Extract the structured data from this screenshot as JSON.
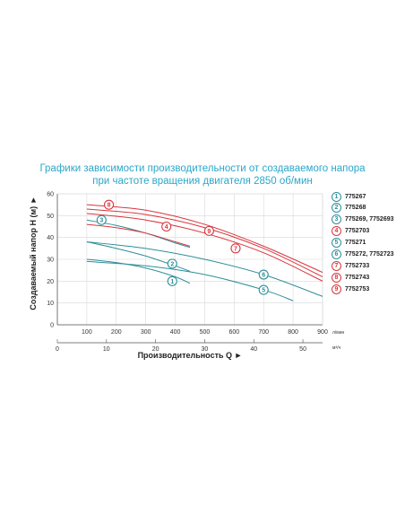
{
  "chart_data": {
    "type": "line",
    "title": "Графики зависимости производительности от создаваемого напора",
    "subtitle": "при частоте вращения двигателя 2850 об/мин",
    "ylabel": "Создаваемый напор H (м) ►",
    "xlabel": "Производительность Q ►",
    "x_unit_primary": "л/мин",
    "x_unit_secondary": "м³/ч",
    "xlim": [
      0,
      900
    ],
    "ylim": [
      0,
      60
    ],
    "x_ticks": [
      100,
      200,
      300,
      400,
      500,
      600,
      700,
      800,
      900
    ],
    "y_ticks": [
      0,
      10,
      20,
      30,
      40,
      50,
      60
    ],
    "x2_ticks": [
      0,
      10,
      20,
      30,
      40,
      50
    ],
    "grid": true,
    "legend_position": "right",
    "colors": {
      "teal": "#2e8f9a",
      "red": "#d9363e",
      "axis": "#555555",
      "grid": "#d8d8d8",
      "title": "#2aa7c9"
    },
    "series": [
      {
        "id": "1",
        "name": "775267",
        "color": "teal",
        "x": [
          100,
          200,
          300,
          400,
          450
        ],
        "y": [
          30,
          28.5,
          26,
          22,
          19
        ]
      },
      {
        "id": "2",
        "name": "775268",
        "color": "teal",
        "x": [
          100,
          200,
          300,
          400,
          450
        ],
        "y": [
          38,
          35,
          31.5,
          27,
          24.5
        ]
      },
      {
        "id": "3",
        "name": "775269, 7752693",
        "color": "teal",
        "x": [
          100,
          200,
          300,
          400,
          450
        ],
        "y": [
          48,
          45.5,
          42,
          37.5,
          35.5
        ]
      },
      {
        "id": "4",
        "name": "7752703",
        "color": "red",
        "x": [
          100,
          200,
          300,
          400,
          450
        ],
        "y": [
          46,
          44.5,
          42,
          38,
          36
        ]
      },
      {
        "id": "5",
        "name": "775271",
        "color": "teal",
        "x": [
          100,
          300,
          500,
          700,
          800
        ],
        "y": [
          29,
          27,
          23,
          16,
          11
        ]
      },
      {
        "id": "6",
        "name": "775272, 7752723",
        "color": "teal",
        "x": [
          100,
          300,
          500,
          700,
          900
        ],
        "y": [
          38,
          35,
          30,
          23,
          13
        ]
      },
      {
        "id": "7",
        "name": "7752733",
        "color": "red",
        "x": [
          100,
          300,
          500,
          700,
          900
        ],
        "y": [
          51,
          48,
          42,
          33,
          20
        ]
      },
      {
        "id": "8",
        "name": "7752743",
        "color": "red",
        "x": [
          100,
          300,
          500,
          700,
          900
        ],
        "y": [
          55,
          52.5,
          46,
          36,
          24
        ]
      },
      {
        "id": "9",
        "name": "7752753",
        "color": "red",
        "x": [
          100,
          300,
          500,
          700,
          900
        ],
        "y": [
          53,
          50.5,
          44.5,
          35,
          22
        ]
      }
    ],
    "curve_labels": [
      {
        "id": "1",
        "x": 390,
        "y": 20,
        "color": "teal"
      },
      {
        "id": "2",
        "x": 390,
        "y": 28,
        "color": "teal"
      },
      {
        "id": "3",
        "x": 150,
        "y": 48,
        "color": "teal"
      },
      {
        "id": "4",
        "x": 370,
        "y": 45,
        "color": "red"
      },
      {
        "id": "5",
        "x": 700,
        "y": 16,
        "color": "teal"
      },
      {
        "id": "6",
        "x": 700,
        "y": 23,
        "color": "teal"
      },
      {
        "id": "7",
        "x": 605,
        "y": 35,
        "color": "red"
      },
      {
        "id": "8",
        "x": 175,
        "y": 55,
        "color": "red"
      },
      {
        "id": "9",
        "x": 515,
        "y": 43,
        "color": "red"
      }
    ]
  }
}
